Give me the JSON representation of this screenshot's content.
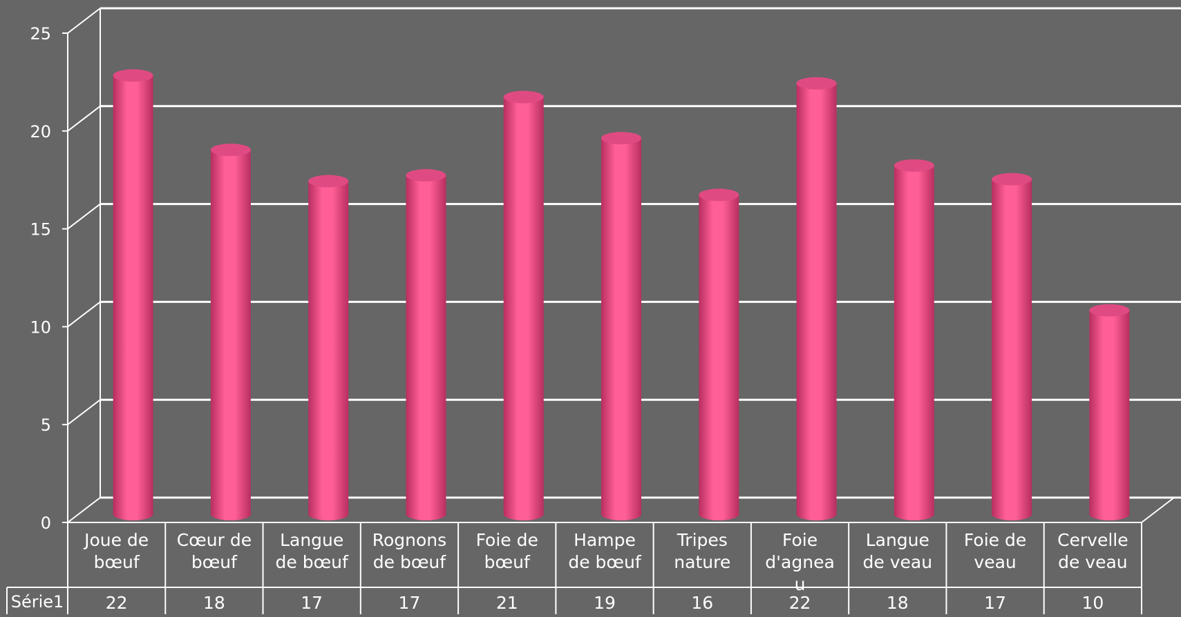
{
  "chart_data": {
    "type": "bar",
    "categories": [
      "Joue de bœuf",
      "Cœur de bœuf",
      "Langue de bœuf",
      "Rognons de bœuf",
      "Foie de bœuf",
      "Hampe de bœuf",
      "Tripes nature",
      "Foie d'agneau",
      "Langue de veau",
      "Foie de veau",
      "Cervelle de veau"
    ],
    "category_lines": [
      [
        "Joue de",
        "bœuf"
      ],
      [
        "Cœur de",
        "bœuf"
      ],
      [
        "Langue",
        "de bœuf"
      ],
      [
        "Rognons",
        "de bœuf"
      ],
      [
        "Foie de",
        "bœuf"
      ],
      [
        "Hampe",
        "de bœuf"
      ],
      [
        "Tripes",
        "nature"
      ],
      [
        "Foie",
        "d'agnea",
        "u"
      ],
      [
        "Langue",
        "de veau"
      ],
      [
        "Foie de",
        "veau"
      ],
      [
        "Cervelle",
        "de veau"
      ]
    ],
    "series": [
      {
        "name": "Série1",
        "values": [
          22.2,
          18.4,
          16.8,
          17.1,
          21.1,
          19.0,
          16.1,
          21.8,
          17.6,
          16.9,
          10.2
        ],
        "labels": [
          "22",
          "18",
          "17",
          "17",
          "21",
          "19",
          "16",
          "22",
          "18",
          "17",
          "10"
        ]
      }
    ],
    "ylim": [
      0,
      25
    ],
    "yticks": [
      0,
      5,
      10,
      15,
      20,
      25
    ],
    "grid": true,
    "data_table": true,
    "colors": {
      "background": "#666666",
      "bar": "#ff5f96",
      "bar_dark": "#b82e60",
      "bar_top": "#e04a82",
      "grid": "#ffffff",
      "text": "#ffffff"
    }
  }
}
